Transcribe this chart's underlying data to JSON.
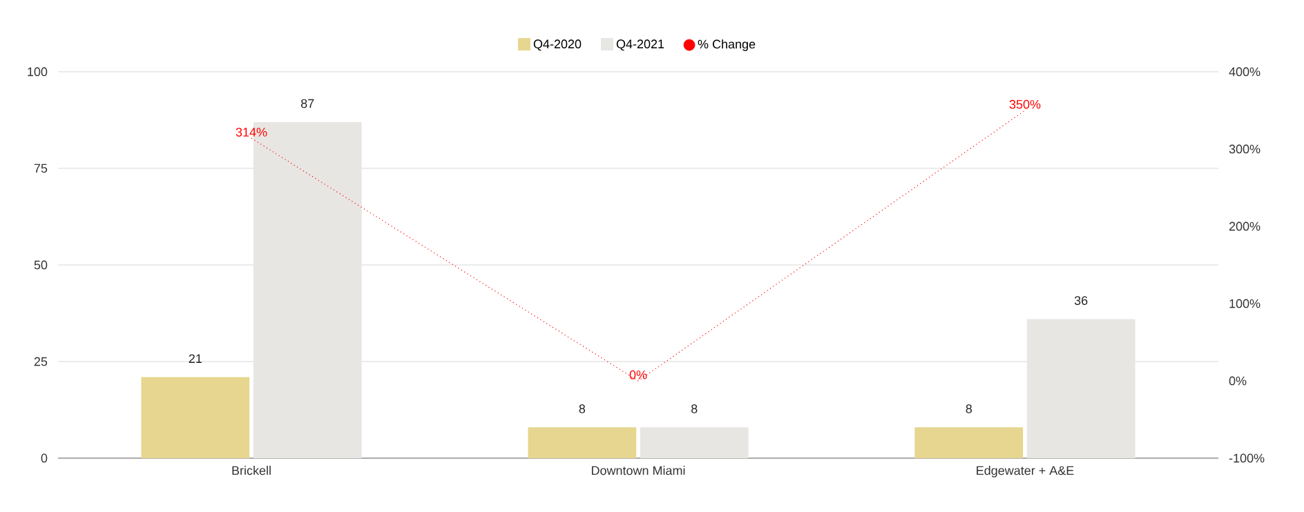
{
  "chart_data": {
    "type": "bar",
    "categories": [
      "Brickell",
      "Downtown Miami",
      "Edgewater + A&E"
    ],
    "series": [
      {
        "name": "Q4-2020",
        "color": "#e6d690",
        "values": [
          21,
          8,
          8
        ]
      },
      {
        "name": "Q4-2021",
        "color": "#e8e6e3",
        "values": [
          87,
          8,
          36
        ]
      },
      {
        "name": "% Change",
        "type": "line",
        "axis": "y2",
        "color": "#ff0000",
        "values": [
          314,
          0,
          350
        ],
        "value_labels": [
          "314%",
          "0%",
          "350%"
        ],
        "line_style": "dotted",
        "marker": "none"
      }
    ],
    "ylim": [
      0,
      100
    ],
    "yticks": [
      0,
      25,
      50,
      75,
      100
    ],
    "y2lim": [
      -100,
      400
    ],
    "y2ticks": [
      {
        "value": -100,
        "label": "-100%"
      },
      {
        "value": 0,
        "label": "0%"
      },
      {
        "value": 100,
        "label": "100%"
      },
      {
        "value": 200,
        "label": "200%"
      },
      {
        "value": 300,
        "label": "300%"
      },
      {
        "value": 400,
        "label": "400%"
      }
    ],
    "grid": "y",
    "legend": "top",
    "data_labels": true
  }
}
